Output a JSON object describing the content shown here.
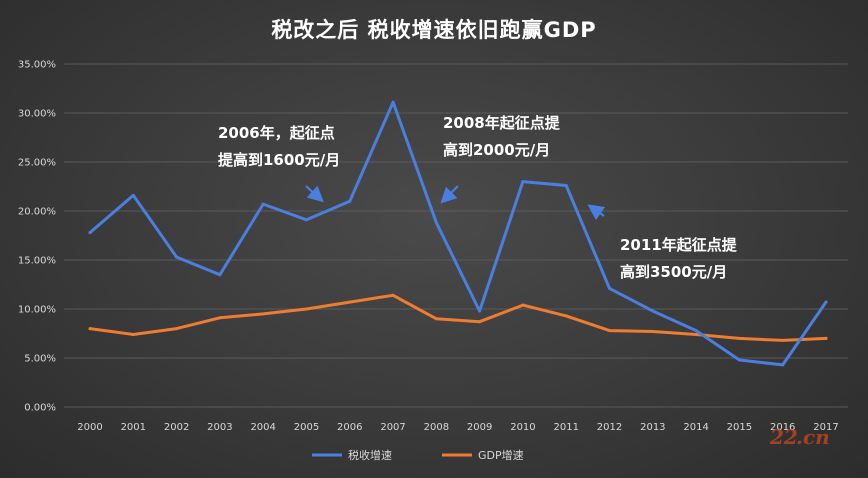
{
  "chart_data": {
    "type": "line",
    "title": "税改之后 税收增速依旧跑赢GDP",
    "categories": [
      "2000",
      "2001",
      "2002",
      "2003",
      "2004",
      "2005",
      "2006",
      "2007",
      "2008",
      "2009",
      "2010",
      "2011",
      "2012",
      "2013",
      "2014",
      "2015",
      "2016",
      "2017"
    ],
    "series": [
      {
        "name": "税收增速",
        "color": "#4a7fe0",
        "values": [
          17.8,
          21.6,
          15.3,
          13.5,
          20.7,
          19.1,
          21.0,
          31.1,
          18.8,
          9.8,
          23.0,
          22.6,
          12.1,
          9.8,
          7.8,
          4.8,
          4.3,
          10.7
        ]
      },
      {
        "name": "GDP增速",
        "color": "#ee7d31",
        "values": [
          8.0,
          7.4,
          8.0,
          9.1,
          9.5,
          10.0,
          10.7,
          11.4,
          9.0,
          8.7,
          10.4,
          9.3,
          7.8,
          7.7,
          7.4,
          7.0,
          6.8,
          7.0
        ]
      }
    ],
    "yticks": [
      "0.00%",
      "5.00%",
      "10.00%",
      "15.00%",
      "20.00%",
      "25.00%",
      "30.00%",
      "35.00%"
    ],
    "ylim": [
      0,
      35
    ],
    "grid": true,
    "legend_position": "bottom",
    "annotations": [
      {
        "lines": [
          "2006年，起征点",
          "提高到1600元/月"
        ],
        "arrow_color": "#4a7fe0"
      },
      {
        "lines": [
          "2008年起征点提",
          "高到2000元/月"
        ],
        "arrow_color": "#4a7fe0"
      },
      {
        "lines": [
          "2011年起征点提",
          "高到3500元/月"
        ],
        "arrow_color": "#4a7fe0"
      }
    ],
    "background_color": "#3d3d3d",
    "grid_color": "#5a5a5a"
  },
  "watermark": {
    "text": "22",
    "sub": ".cn"
  }
}
